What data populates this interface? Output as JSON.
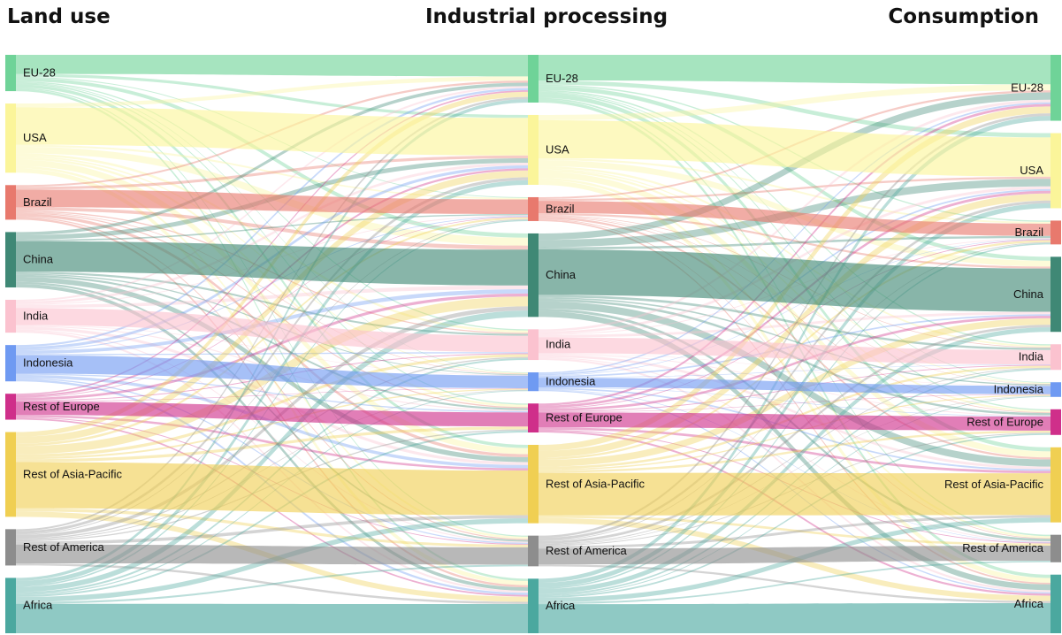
{
  "stages": [
    "Land use",
    "Industrial processing",
    "Consumption"
  ],
  "colors": {
    "EU-28": "#6fd398",
    "USA": "#fbf59a",
    "Brazil": "#e8796d",
    "China": "#3f8875",
    "India": "#fbc2cf",
    "Indonesia": "#6f9af2",
    "Rest of Europe": "#cf2f8a",
    "Rest of Asia-Pacific": "#f0cf52",
    "Rest of America": "#8d8d8d",
    "Africa": "#4ba89f"
  },
  "regions": [
    "EU-28",
    "USA",
    "Brazil",
    "China",
    "India",
    "Indonesia",
    "Rest of Europe",
    "Rest of Asia-Pacific",
    "Rest of America",
    "Africa"
  ],
  "land_use": {
    "EU-28": 42,
    "USA": 80,
    "Brazil": 40,
    "China": 64,
    "India": 38,
    "Indonesia": 42,
    "Rest of Europe": 30,
    "Rest of Asia-Pacific": 98,
    "Rest of America": 42,
    "Africa": 64
  },
  "industrial_processing": {
    "EU-28": 56,
    "USA": 82,
    "Brazil": 28,
    "China": 98,
    "India": 36,
    "Indonesia": 22,
    "Rest of Europe": 34,
    "Rest of Asia-Pacific": 92,
    "Rest of America": 36,
    "Africa": 64
  },
  "consumption": {
    "EU-28": 72,
    "USA": 82,
    "Brazil": 26,
    "China": 82,
    "India": 28,
    "Indonesia": 16,
    "Rest of Europe": 28,
    "Rest of Asia-Pacific": 82,
    "Rest of America": 30,
    "Africa": 64
  }
}
